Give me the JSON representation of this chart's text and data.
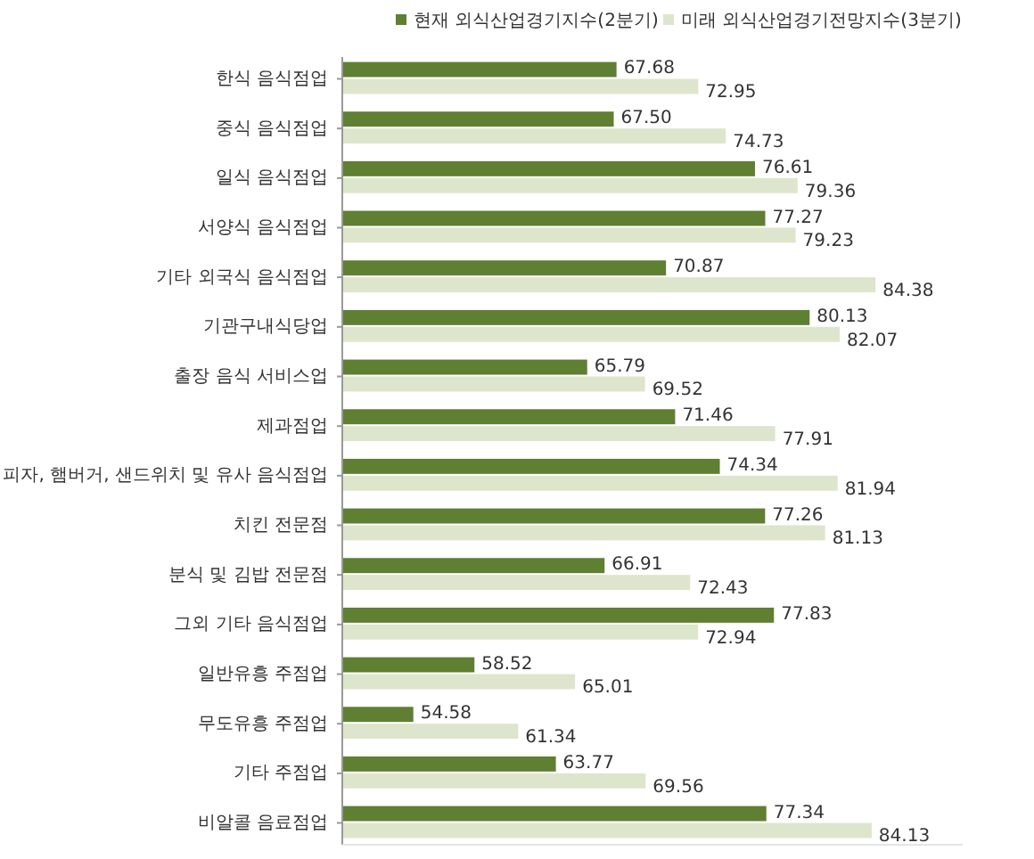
{
  "chart_data": {
    "type": "bar",
    "orientation": "horizontal",
    "categories": [
      "한식 음식점업",
      "중식 음식점업",
      "일식 음식점업",
      "서양식 음식점업",
      "기타 외국식 음식점업",
      "기관구내식당업",
      "출장 음식 서비스업",
      "제과점업",
      "피자, 햄버거, 샌드위치 및 유사 음식점업",
      "치킨 전문점",
      "분식 및 김밥 전문점",
      "그외 기타 음식점업",
      "일반유흥 주점업",
      "무도유흥 주점업",
      "기타 주점업",
      "비알콜 음료점업"
    ],
    "series": [
      {
        "name": "현재 외식산업경기지수(2분기)",
        "color": "#5f7f32",
        "values": [
          67.68,
          67.5,
          76.61,
          77.27,
          70.87,
          80.13,
          65.79,
          71.46,
          74.34,
          77.26,
          66.91,
          77.83,
          58.52,
          54.58,
          63.77,
          77.34
        ],
        "value_labels": [
          "67.68",
          "67.50",
          "76.61",
          "77.27",
          "70.87",
          "80.13",
          "65.79",
          "71.46",
          "74.34",
          "77.26",
          "66.91",
          "77.83",
          "58.52",
          "54.58",
          "63.77",
          "77.34"
        ]
      },
      {
        "name": "미래 외식산업경기전망지수(3분기)",
        "color": "#dde6cc",
        "values": [
          72.95,
          74.73,
          79.36,
          79.23,
          84.38,
          82.07,
          69.52,
          77.91,
          81.94,
          81.13,
          72.43,
          72.94,
          65.01,
          61.34,
          69.56,
          84.13
        ],
        "value_labels": [
          "72.95",
          "74.73",
          "79.36",
          "79.23",
          "84.38",
          "82.07",
          "69.52",
          "77.91",
          "81.94",
          "81.13",
          "72.43",
          "72.94",
          "65.01",
          "61.34",
          "69.56",
          "84.13"
        ]
      }
    ],
    "xlim": [
      50,
      90
    ],
    "tick_labels": "y",
    "legend": "top",
    "grid": false
  }
}
